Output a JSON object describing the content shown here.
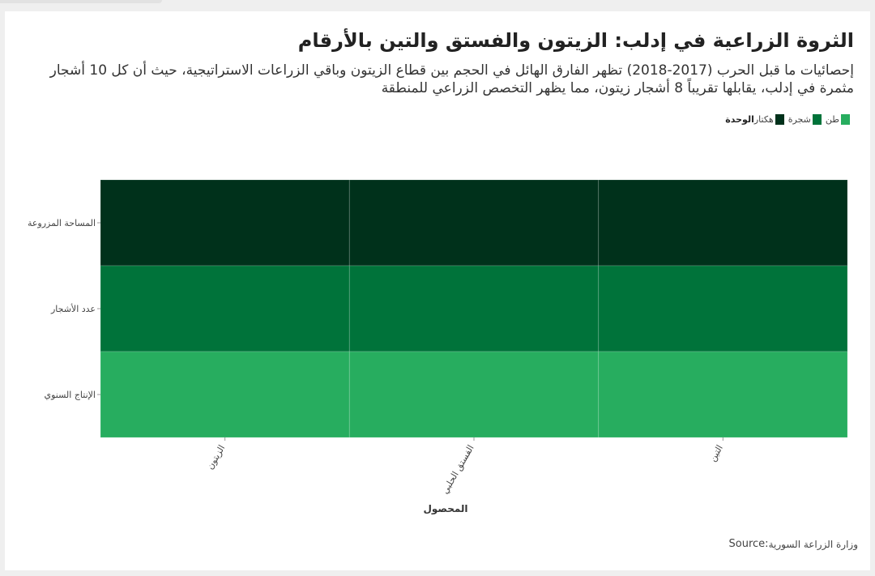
{
  "title": "الثروة الزراعية في إدلب: الزيتون والفستق والتين بالأرقام",
  "subtitle": "إحصائيات ما قبل الحرب (2017-2018) تظهر الفارق الهائل في الحجم بين قطاع الزيتون وباقي الزراعات الاستراتيجية، حيث أن كل 10 أشجار مثمرة في إدلب، يقابلها تقريباً 8 أشجار زيتون، مما يظهر التخصص الزراعي للمنطقة",
  "legend": {
    "title": "الوحدة",
    "items": [
      {
        "label": "هكتار",
        "color": "#00311b"
      },
      {
        "label": "شجرة",
        "color": "#00733a"
      },
      {
        "label": "طن",
        "color": "#27ad5f"
      }
    ]
  },
  "source": {
    "prefix": "Source:",
    "text": "وزارة الزراعة السورية"
  },
  "chart_data": {
    "type": "heatmap",
    "title": "الثروة الزراعية في إدلب: الزيتون والفستق والتين بالأرقام",
    "xlabel": "المحصول",
    "ylabel": "",
    "x_categories": [
      "الزيتون",
      "الفستق الحلبي",
      "التين"
    ],
    "y_categories": [
      "المساحة المزروعة",
      "عدد الأشجار",
      "الإنتاج السنوي"
    ],
    "row_units": [
      "هكتار",
      "شجرة",
      "طن"
    ],
    "row_colors": [
      "#00311b",
      "#00733a",
      "#27ad5f"
    ],
    "grid": false,
    "legend_position": "top-right"
  }
}
